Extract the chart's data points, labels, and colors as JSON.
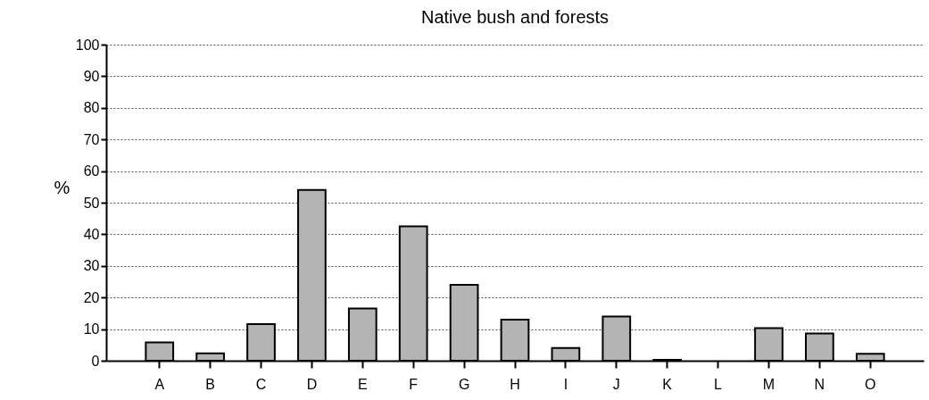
{
  "chart_data": {
    "type": "bar",
    "title": "Native bush and forests",
    "ylabel": "%",
    "categories": [
      "A",
      "B",
      "C",
      "D",
      "E",
      "F",
      "G",
      "H",
      "I",
      "J",
      "K",
      "L",
      "M",
      "N",
      "O"
    ],
    "values": [
      5.8,
      2.3,
      11.6,
      54,
      16.5,
      42.5,
      24,
      13,
      4,
      14,
      0.3,
      0,
      10.3,
      8.6,
      2.2
    ],
    "color": "#b4b4b4",
    "ylim": [
      0,
      100
    ],
    "yticks": [
      0,
      10,
      20,
      30,
      40,
      50,
      60,
      70,
      80,
      90,
      100
    ],
    "grid": "y"
  }
}
